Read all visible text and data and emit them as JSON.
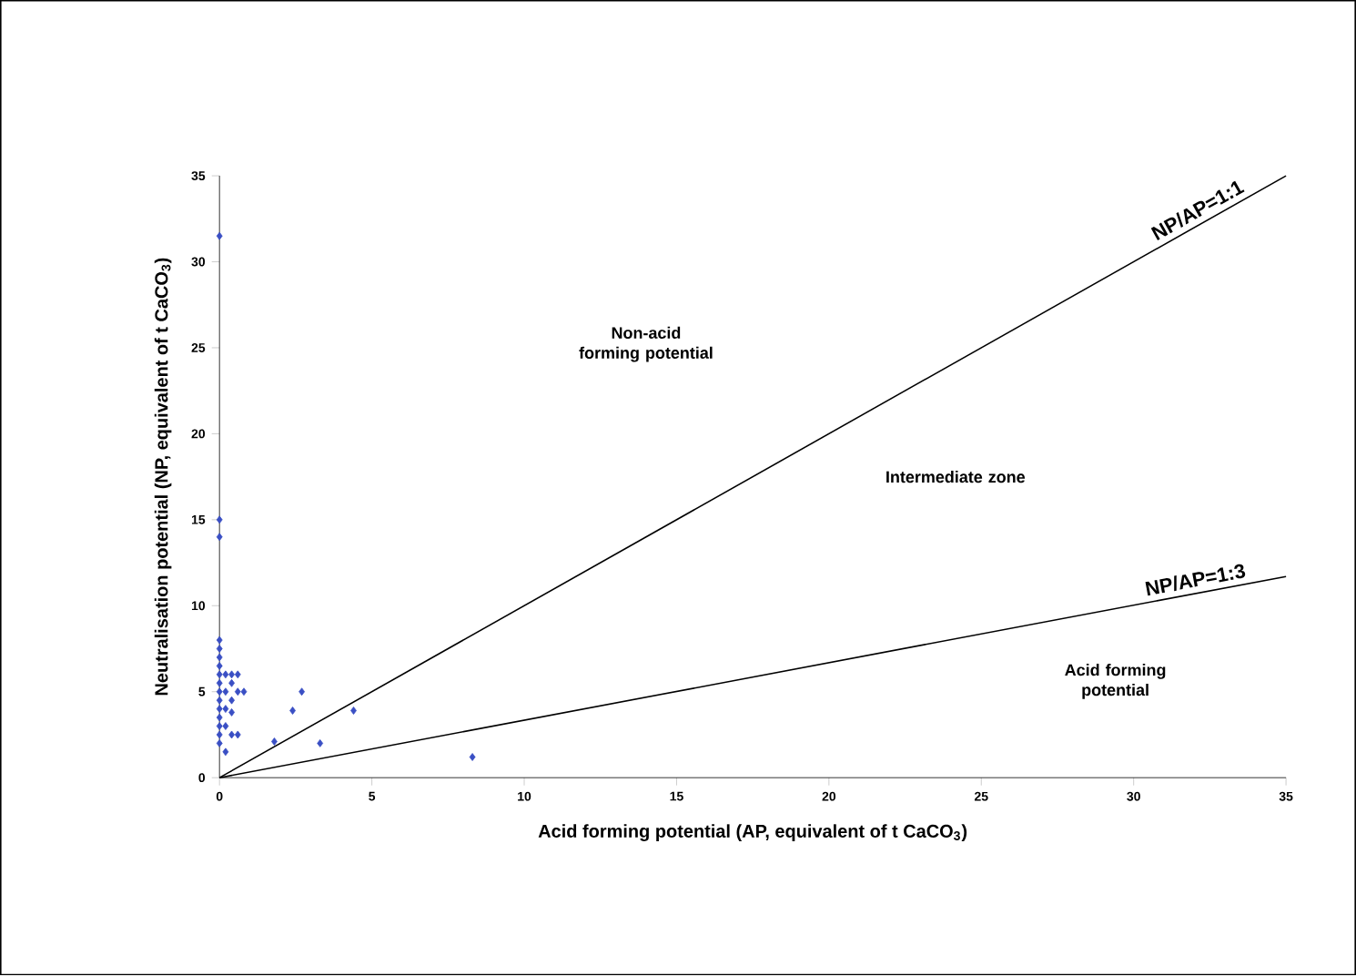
{
  "chart_data": {
    "type": "scatter",
    "xlabel": "Acid forming potential (AP, equivalent of t CaCO$_{3}$)",
    "ylabel": "Neutralisation potential (NP, equivalent of t CaCO$_{3}$)",
    "xlim": [
      0,
      35
    ],
    "ylim": [
      0,
      35
    ],
    "xticks": [
      0,
      5,
      10,
      15,
      20,
      25,
      30,
      35
    ],
    "yticks": [
      0,
      5,
      10,
      15,
      20,
      25,
      30,
      35
    ],
    "marker": "diamond",
    "grid": false,
    "series": [
      {
        "color": "#3a4fc4",
        "x": [
          0,
          0,
          0,
          0,
          0,
          0,
          0,
          0,
          0,
          0,
          0,
          0,
          0,
          0,
          0,
          0,
          0.2,
          0.2,
          0.2,
          0.2,
          0.2,
          0.4,
          0.4,
          0.4,
          0.4,
          0.4,
          0.6,
          0.6,
          0.6,
          0.8,
          1.8,
          2.4,
          2.7,
          3.3,
          4.4,
          8.3
        ],
        "values": [
          2,
          2.5,
          3,
          3.5,
          4,
          4.5,
          5,
          5.5,
          6,
          6.5,
          7,
          7.5,
          8,
          14,
          15,
          31.5,
          1.5,
          3,
          4,
          5,
          6,
          2.5,
          3.8,
          4.5,
          5.5,
          6,
          2.5,
          5,
          6,
          5,
          2.1,
          3.9,
          5,
          2,
          3.9,
          1.2
        ]
      },
      {
        "type": "line",
        "name": "NP/AP=1:1",
        "color": "#000000",
        "marker": "none",
        "x": [
          0,
          35
        ],
        "values": [
          0,
          35
        ]
      },
      {
        "type": "line",
        "name": "NP/AP=1:3",
        "color": "#000000",
        "marker": "none",
        "x": [
          0,
          35
        ],
        "values": [
          0,
          11.7
        ]
      }
    ],
    "annotations": [
      "Non-acid forming potential",
      "Intermediate zone",
      "Acid forming potential"
    ]
  }
}
